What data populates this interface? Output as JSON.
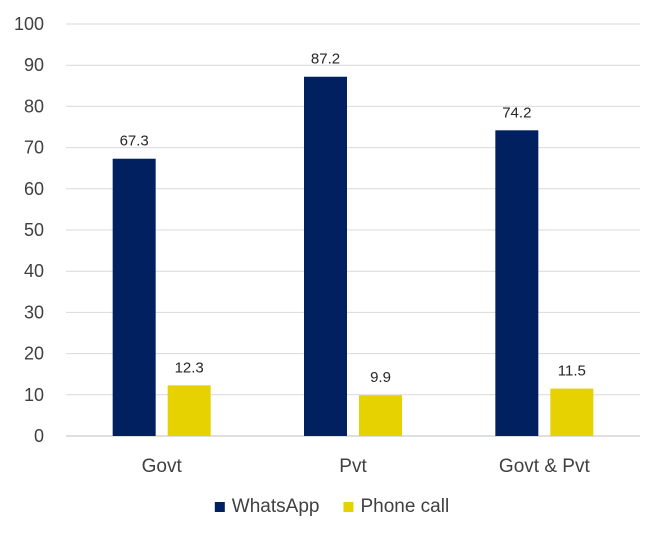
{
  "chart_data": {
    "type": "bar",
    "categories": [
      "Govt",
      "Pvt",
      "Govt & Pvt"
    ],
    "series": [
      {
        "name": "WhatsApp",
        "values": [
          67.3,
          87.2,
          74.2
        ],
        "color": "#002060"
      },
      {
        "name": "Phone call",
        "values": [
          12.3,
          9.9,
          11.5
        ],
        "color": "#E6D200"
      }
    ],
    "ylim": [
      0,
      100
    ],
    "yticks": [
      0,
      10,
      20,
      30,
      40,
      50,
      60,
      70,
      80,
      90,
      100
    ],
    "grid": true,
    "legend_position": "bottom",
    "data_labels": true
  }
}
